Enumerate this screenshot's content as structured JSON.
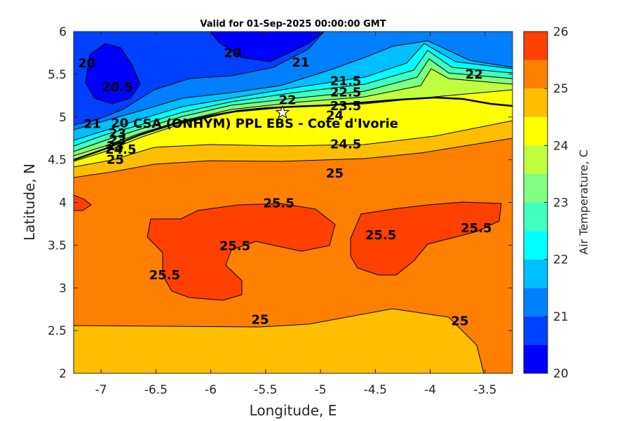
{
  "chart_data": {
    "type": "heatmap",
    "title": "Valid for 01-Sep-2025 00:00:00 GMT",
    "xlabel": "Longitude, E",
    "ylabel": "Latitude, N",
    "colorbar_label": "Air Temperature, C",
    "xlim": [
      -7.25,
      -3.25
    ],
    "ylim": [
      2,
      6
    ],
    "xticks": [
      -7,
      -6.5,
      -6,
      -5.5,
      -5,
      -4.5,
      -4,
      -3.5
    ],
    "yticks": [
      2,
      2.5,
      3,
      3.5,
      4,
      4.5,
      5,
      5.5,
      6
    ],
    "colorbar": {
      "range": [
        20,
        26
      ],
      "ticks": [
        20,
        21,
        22,
        23,
        24,
        25,
        26
      ],
      "levels": [
        20,
        20.5,
        21,
        21.5,
        22,
        22.5,
        23,
        23.5,
        24,
        24.5,
        25,
        25.5,
        26
      ],
      "colors": [
        "#0000ff",
        "#0040ff",
        "#0080ff",
        "#00bfff",
        "#00ffff",
        "#40ffbf",
        "#80ff80",
        "#bfff40",
        "#ffff00",
        "#ffbf00",
        "#ff8000",
        "#ff4000"
      ]
    },
    "site": {
      "label": "CSA (ONHYM) PPL EBS - Cote d'Ivorie",
      "lon": -5.32,
      "lat": 5.05
    },
    "contour_labels": [
      {
        "text": "20",
        "lon": -5.8,
        "lat": 5.75
      },
      {
        "text": "20",
        "lon": -7.13,
        "lat": 5.63
      },
      {
        "text": "20.5",
        "lon": -6.85,
        "lat": 5.35
      },
      {
        "text": "21",
        "lon": -5.18,
        "lat": 5.64
      },
      {
        "text": "21",
        "lon": -7.08,
        "lat": 4.92
      },
      {
        "text": "21.5",
        "lon": -4.77,
        "lat": 5.42
      },
      {
        "text": "22",
        "lon": -3.6,
        "lat": 5.5
      },
      {
        "text": "22",
        "lon": -5.3,
        "lat": 5.2
      },
      {
        "text": "22.5",
        "lon": -4.77,
        "lat": 5.29
      },
      {
        "text": "23.5",
        "lon": -4.77,
        "lat": 5.13
      },
      {
        "text": "24",
        "lon": -4.87,
        "lat": 5.02
      },
      {
        "text": "20",
        "lon": -6.83,
        "lat": 4.93
      },
      {
        "text": "23",
        "lon": -6.85,
        "lat": 4.81
      },
      {
        "text": "23",
        "lon": -6.85,
        "lat": 4.73
      },
      {
        "text": "23",
        "lon": -6.87,
        "lat": 4.66
      },
      {
        "text": "24.5",
        "lon": -6.82,
        "lat": 4.62
      },
      {
        "text": "25",
        "lon": -6.87,
        "lat": 4.5
      },
      {
        "text": "24.5",
        "lon": -4.77,
        "lat": 4.68
      },
      {
        "text": "25",
        "lon": -4.87,
        "lat": 4.34
      },
      {
        "text": "25.5",
        "lon": -5.38,
        "lat": 3.99
      },
      {
        "text": "25.5",
        "lon": -5.78,
        "lat": 3.49
      },
      {
        "text": "25.5",
        "lon": -6.42,
        "lat": 3.15
      },
      {
        "text": "25.5",
        "lon": -4.45,
        "lat": 3.62
      },
      {
        "text": "25.5",
        "lon": -3.58,
        "lat": 3.7
      },
      {
        "text": "25",
        "lon": -5.55,
        "lat": 2.63
      },
      {
        "text": "25",
        "lon": -3.73,
        "lat": 2.61
      }
    ]
  }
}
